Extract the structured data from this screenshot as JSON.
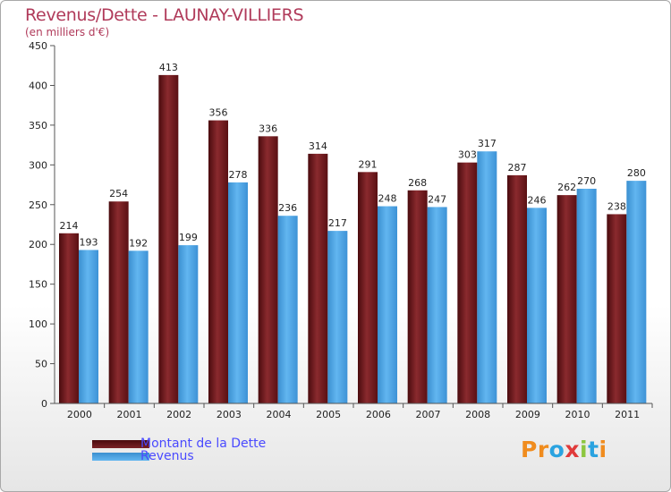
{
  "header": {
    "title": "Revenus/Dette - LAUNAY-VILLIERS",
    "subtitle": "(en milliers d'€)"
  },
  "colors": {
    "dette": "#6b1518",
    "revenus": "#4fa6e6",
    "title": "#b03a5a",
    "legend_text": "#4a4aff"
  },
  "legend": {
    "items": [
      {
        "label": "Montant de la Dette",
        "color": "#6b1518"
      },
      {
        "label": "Revenus",
        "color": "#4fa6e6"
      }
    ]
  },
  "logo": {
    "text": "Proxiti",
    "letter_colors": [
      "#f08c1e",
      "#f08c1e",
      "#2aa3e0",
      "#e03a3a",
      "#8cc63f",
      "#2aa3e0",
      "#f08c1e"
    ]
  },
  "chart_data": {
    "type": "bar",
    "title": "Revenus/Dette - LAUNAY-VILLIERS",
    "subtitle": "(en milliers d'€)",
    "xlabel": "",
    "ylabel": "",
    "ylim": [
      0,
      450
    ],
    "yticks": [
      0,
      50,
      100,
      150,
      200,
      250,
      300,
      350,
      400,
      450
    ],
    "grid": false,
    "legend_position": "bottom-left",
    "categories": [
      "2000",
      "2001",
      "2002",
      "2003",
      "2004",
      "2005",
      "2006",
      "2007",
      "2008",
      "2009",
      "2010",
      "2011"
    ],
    "series": [
      {
        "name": "Montant de la Dette",
        "values": [
          214,
          254,
          413,
          356,
          336,
          314,
          291,
          268,
          303,
          287,
          262,
          238
        ]
      },
      {
        "name": "Revenus",
        "values": [
          193,
          192,
          199,
          278,
          236,
          217,
          248,
          247,
          317,
          246,
          270,
          280
        ]
      }
    ]
  }
}
